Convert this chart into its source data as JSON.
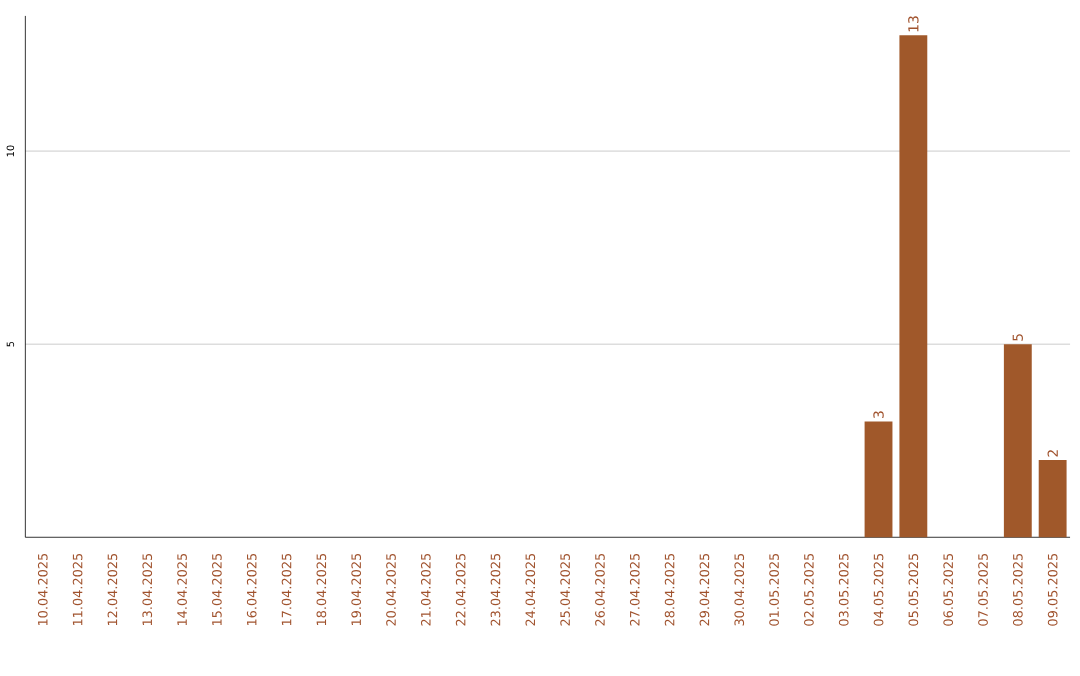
{
  "chart_data": {
    "type": "bar",
    "categories": [
      "10.04.2025",
      "11.04.2025",
      "12.04.2025",
      "13.04.2025",
      "14.04.2025",
      "15.04.2025",
      "16.04.2025",
      "17.04.2025",
      "18.04.2025",
      "19.04.2025",
      "20.04.2025",
      "21.04.2025",
      "22.04.2025",
      "23.04.2025",
      "24.04.2025",
      "25.04.2025",
      "26.04.2025",
      "27.04.2025",
      "28.04.2025",
      "29.04.2025",
      "30.04.2025",
      "01.05.2025",
      "02.05.2025",
      "03.05.2025",
      "04.05.2025",
      "05.05.2025",
      "06.05.2025",
      "07.05.2025",
      "08.05.2025",
      "09.05.2025"
    ],
    "values": [
      null,
      null,
      null,
      null,
      null,
      null,
      null,
      null,
      null,
      null,
      null,
      null,
      null,
      null,
      null,
      null,
      null,
      null,
      null,
      null,
      null,
      null,
      null,
      null,
      3,
      13,
      null,
      null,
      5,
      2
    ],
    "value_labels": [
      null,
      null,
      null,
      null,
      null,
      null,
      null,
      null,
      null,
      null,
      null,
      null,
      null,
      null,
      null,
      null,
      null,
      null,
      null,
      null,
      null,
      null,
      null,
      null,
      "3",
      "13",
      null,
      null,
      "5",
      "2"
    ],
    "color": "#a0582a",
    "ylim": [
      0,
      13.5
    ],
    "yticks": [
      5,
      10
    ],
    "grid": "y"
  }
}
